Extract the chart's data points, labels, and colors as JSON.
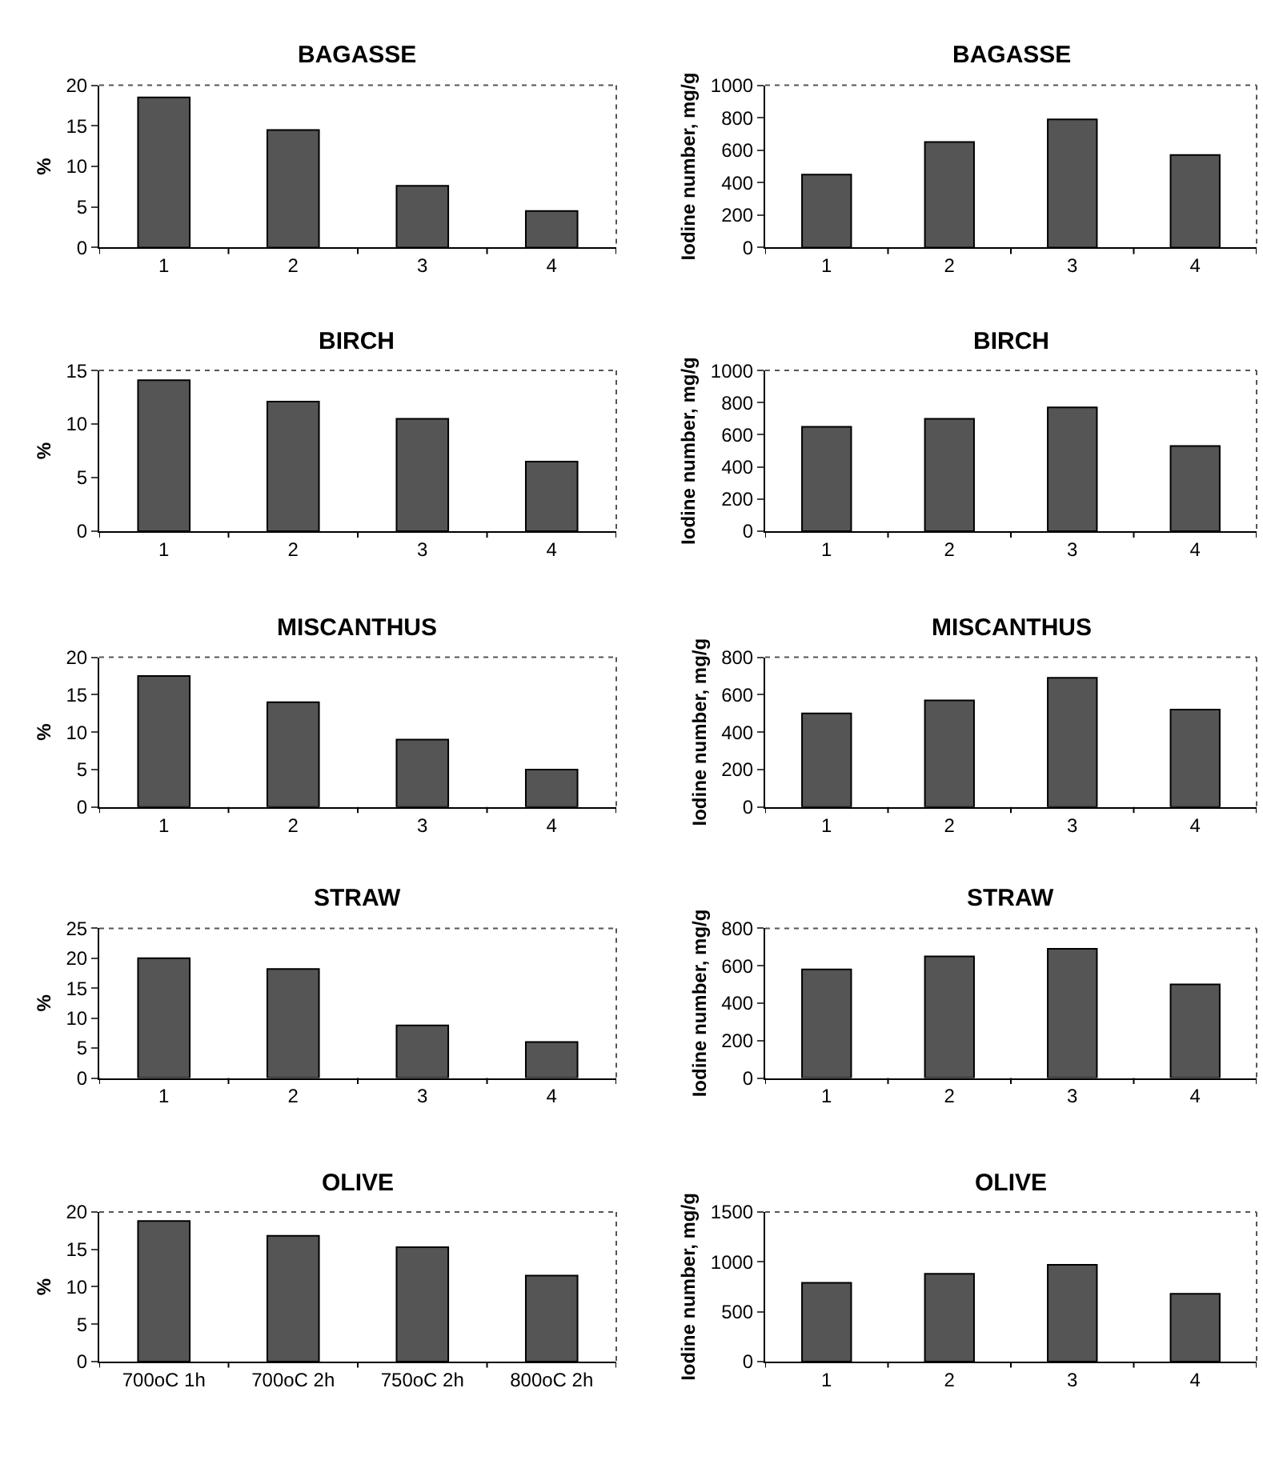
{
  "chart_data": [
    {
      "type": "bar",
      "title": "BAGASSE",
      "ylabel": "%",
      "categories": [
        "1",
        "2",
        "3",
        "4"
      ],
      "values": [
        18.5,
        14.5,
        7.6,
        4.5
      ],
      "color": "#555555",
      "ylim": [
        0,
        20
      ],
      "yticks": [
        0,
        5,
        10,
        15,
        20
      ]
    },
    {
      "type": "bar",
      "title": "BAGASSE",
      "ylabel": "Iodine number, mg/g",
      "categories": [
        "1",
        "2",
        "3",
        "4"
      ],
      "values": [
        450,
        650,
        790,
        570
      ],
      "color": "#555555",
      "ylim": [
        0,
        1000
      ],
      "yticks": [
        0,
        200,
        400,
        600,
        800,
        1000
      ]
    },
    {
      "type": "bar",
      "title": "BIRCH",
      "ylabel": "%",
      "categories": [
        "1",
        "2",
        "3",
        "4"
      ],
      "values": [
        14.1,
        12.1,
        10.5,
        6.5
      ],
      "color": "#555555",
      "ylim": [
        0,
        15
      ],
      "yticks": [
        0,
        5,
        10,
        15
      ]
    },
    {
      "type": "bar",
      "title": "BIRCH",
      "ylabel": "Iodine number, mg/g",
      "categories": [
        "1",
        "2",
        "3",
        "4"
      ],
      "values": [
        650,
        700,
        770,
        530
      ],
      "color": "#555555",
      "ylim": [
        0,
        1000
      ],
      "yticks": [
        0,
        200,
        400,
        600,
        800,
        1000
      ]
    },
    {
      "type": "bar",
      "title": "MISCANTHUS",
      "ylabel": "%",
      "categories": [
        "1",
        "2",
        "3",
        "4"
      ],
      "values": [
        17.5,
        14,
        9,
        5
      ],
      "color": "#555555",
      "ylim": [
        0,
        20
      ],
      "yticks": [
        0,
        5,
        10,
        15,
        20
      ]
    },
    {
      "type": "bar",
      "title": "MISCANTHUS",
      "ylabel": "Iodine number, mg/g",
      "categories": [
        "1",
        "2",
        "3",
        "4"
      ],
      "values": [
        500,
        570,
        690,
        520
      ],
      "color": "#555555",
      "ylim": [
        0,
        800
      ],
      "yticks": [
        0,
        200,
        400,
        600,
        800
      ]
    },
    {
      "type": "bar",
      "title": "STRAW",
      "ylabel": "%",
      "categories": [
        "1",
        "2",
        "3",
        "4"
      ],
      "values": [
        20,
        18.2,
        8.8,
        6
      ],
      "color": "#555555",
      "ylim": [
        0,
        25
      ],
      "yticks": [
        0,
        5,
        10,
        15,
        20,
        25
      ]
    },
    {
      "type": "bar",
      "title": "STRAW",
      "ylabel": "Iodine number, mg/g",
      "categories": [
        "1",
        "2",
        "3",
        "4"
      ],
      "values": [
        580,
        650,
        690,
        500
      ],
      "color": "#555555",
      "ylim": [
        0,
        800
      ],
      "yticks": [
        0,
        200,
        400,
        600,
        800
      ]
    },
    {
      "type": "bar",
      "title": "OLIVE",
      "ylabel": "%",
      "categories": [
        "700oC 1h",
        "700oC 2h",
        "750oC 2h",
        "800oC 2h"
      ],
      "values": [
        18.8,
        16.8,
        15.3,
        11.5
      ],
      "color": "#555555",
      "ylim": [
        0,
        20
      ],
      "yticks": [
        0,
        5,
        10,
        15,
        20
      ]
    },
    {
      "type": "bar",
      "title": "OLIVE",
      "ylabel": "Iodine number, mg/g",
      "categories": [
        "1",
        "2",
        "3",
        "4"
      ],
      "values": [
        790,
        880,
        970,
        680
      ],
      "color": "#555555",
      "ylim": [
        0,
        1500
      ],
      "yticks": [
        0,
        500,
        1000,
        1500
      ]
    }
  ]
}
